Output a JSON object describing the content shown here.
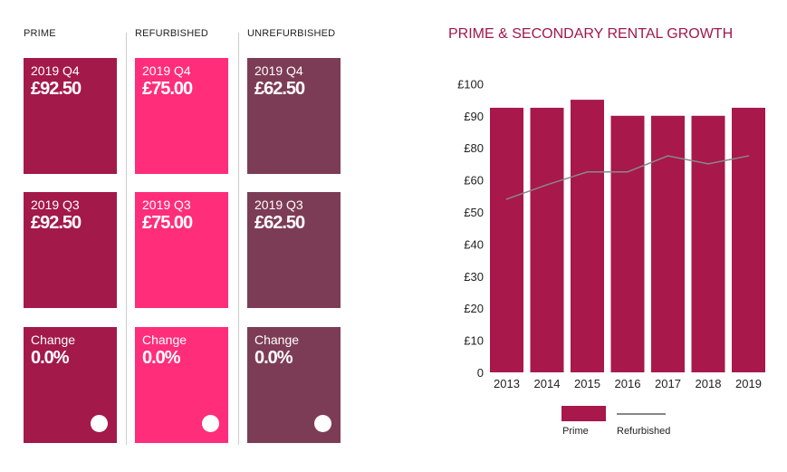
{
  "columns": [
    {
      "heading": "PRIME",
      "color": "#a3194a",
      "cards": [
        {
          "label": "2019 Q4",
          "value": "£92.50"
        },
        {
          "label": "2019 Q3",
          "value": "£92.50"
        },
        {
          "label": "Change",
          "value": "0.0%"
        }
      ]
    },
    {
      "heading": "REFURBISHED",
      "color": "#ff2d7a",
      "cards": [
        {
          "label": "2019 Q4",
          "value": "£75.00"
        },
        {
          "label": "2019 Q3",
          "value": "£75.00"
        },
        {
          "label": "Change",
          "value": "0.0%"
        }
      ]
    },
    {
      "heading": "UNREFURBISHED",
      "color": "#7d3c55",
      "cards": [
        {
          "label": "2019 Q4",
          "value": "£62.50"
        },
        {
          "label": "2019 Q3",
          "value": "£62.50"
        },
        {
          "label": "Change",
          "value": "0.0%"
        }
      ]
    }
  ],
  "chart_data": {
    "type": "bar",
    "title": "PRIME & SECONDARY RENTAL GROWTH",
    "categories": [
      "2013",
      "2014",
      "2015",
      "2016",
      "2017",
      "2018",
      "2019"
    ],
    "series": [
      {
        "name": "Prime",
        "type": "bar",
        "color": "#a8184a",
        "values": [
          92.5,
          92.5,
          95,
          90,
          90,
          90,
          92.5
        ]
      },
      {
        "name": "Refurbished",
        "type": "line",
        "color": "#888888",
        "values": [
          54,
          58.5,
          65,
          65,
          75,
          70,
          75
        ]
      }
    ],
    "yticks": [
      0,
      10,
      20,
      30,
      40,
      50,
      60,
      80,
      90,
      100
    ],
    "ytick_labels": [
      "0",
      "£10",
      "£20",
      "£30",
      "£40",
      "£50",
      "£60",
      "£80",
      "£90",
      "£100"
    ],
    "ylim": [
      0,
      100
    ],
    "legend": "bottom"
  }
}
